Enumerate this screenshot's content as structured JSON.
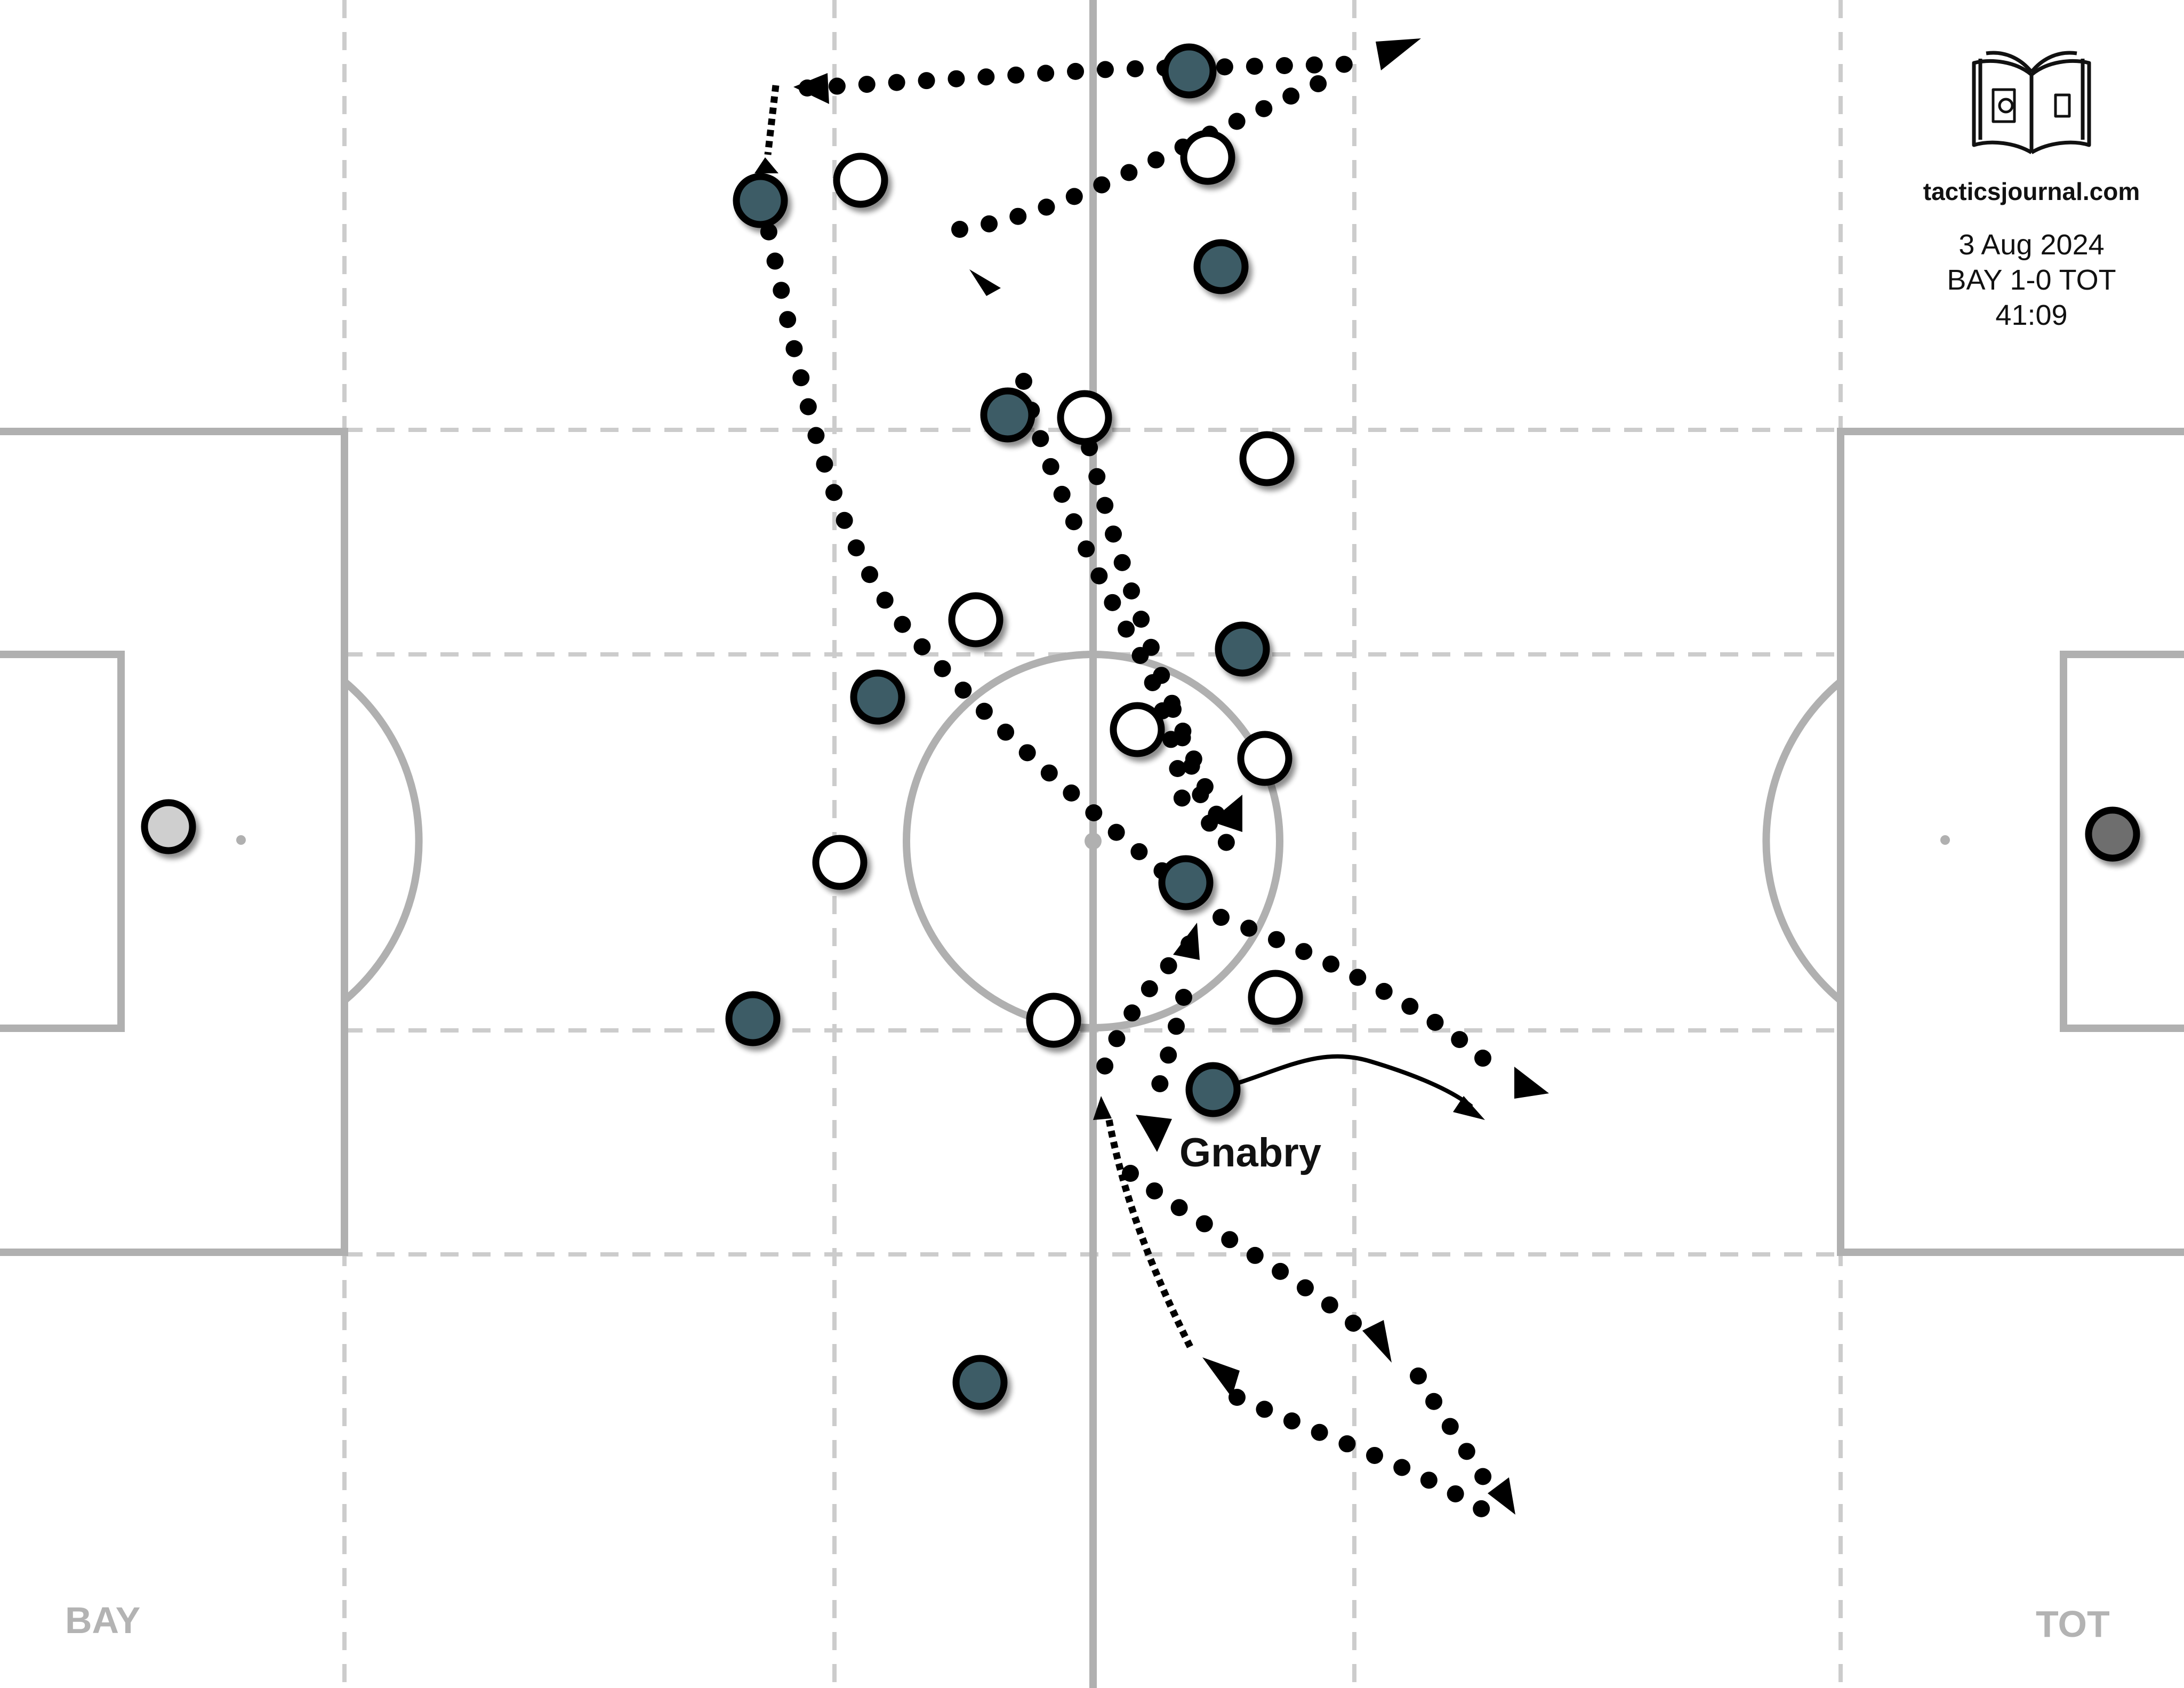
{
  "branding": {
    "site": "tacticsjournal.com",
    "date": "3 Aug 2024",
    "score": "BAY 1-0 TOT",
    "clock": "41:09",
    "logo_icon": "open-book-pitch-icon"
  },
  "teams": {
    "left": "BAY",
    "right": "TOT"
  },
  "highlight_player": {
    "name": "Gnabry"
  },
  "colors": {
    "home_fill": "#3d5b66",
    "away_fill": "#ffffff",
    "gk_home_fill": "#cfcfcf",
    "gk_away_fill": "#6e6e6e",
    "pitch_lines": "#b0b0b0",
    "zone_lines": "#cccccc",
    "runs": "#000000"
  }
}
